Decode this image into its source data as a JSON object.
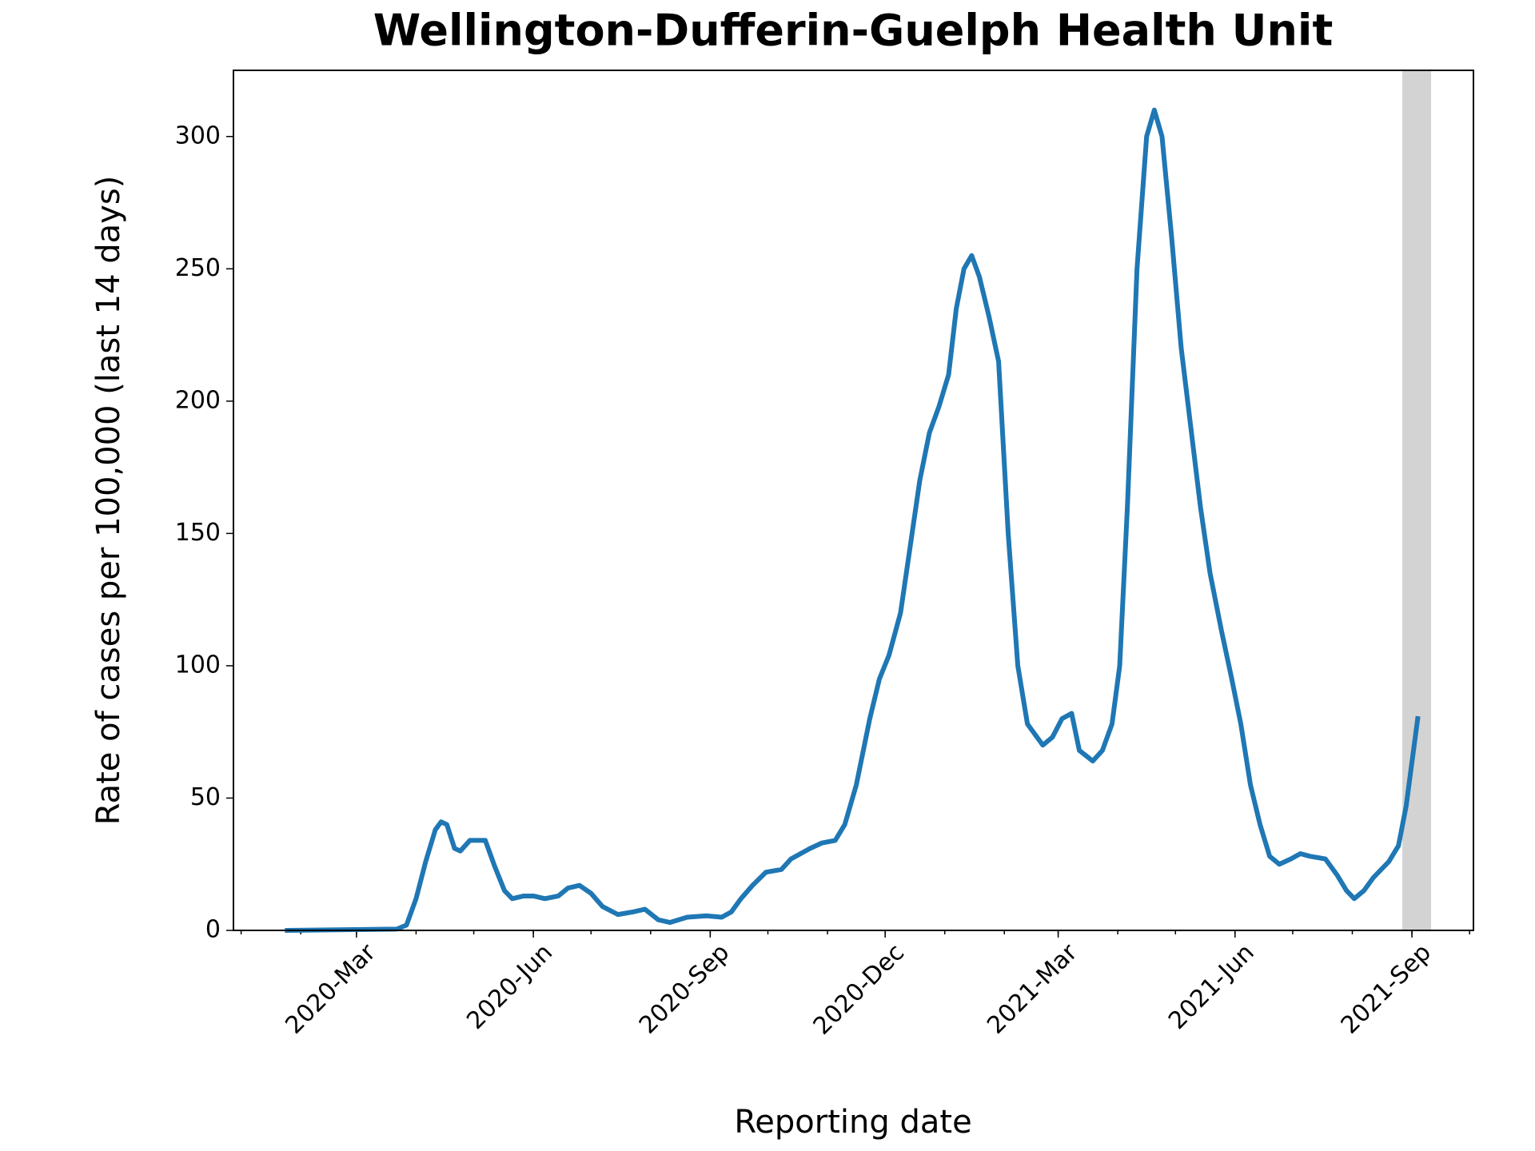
{
  "chart_data": {
    "type": "line",
    "title": "Wellington-Dufferin-Guelph Health Unit",
    "x_label": "Reporting date",
    "y_label": "Rate of cases per 100,000 (last 14 days)",
    "x": [
      "2020-01-25",
      "2020-03-22",
      "2020-03-27",
      "2020-04-01",
      "2020-04-06",
      "2020-04-11",
      "2020-04-14",
      "2020-04-17",
      "2020-04-21",
      "2020-04-24",
      "2020-04-29",
      "2020-05-03",
      "2020-05-07",
      "2020-05-12",
      "2020-05-17",
      "2020-05-21",
      "2020-05-27",
      "2020-06-01",
      "2020-06-07",
      "2020-06-14",
      "2020-06-19",
      "2020-06-25",
      "2020-07-01",
      "2020-07-07",
      "2020-07-15",
      "2020-07-23",
      "2020-07-29",
      "2020-08-05",
      "2020-08-11",
      "2020-08-20",
      "2020-08-30",
      "2020-09-07",
      "2020-09-12",
      "2020-09-17",
      "2020-09-23",
      "2020-09-30",
      "2020-10-08",
      "2020-10-13",
      "2020-10-23",
      "2020-10-29",
      "2020-11-05",
      "2020-11-10",
      "2020-11-16",
      "2020-11-23",
      "2020-11-28",
      "2020-12-03",
      "2020-12-09",
      "2020-12-14",
      "2020-12-19",
      "2020-12-24",
      "2020-12-29",
      "2021-01-03",
      "2021-01-07",
      "2021-01-11",
      "2021-01-15",
      "2021-01-19",
      "2021-01-24",
      "2021-01-29",
      "2021-02-03",
      "2021-02-08",
      "2021-02-13",
      "2021-02-21",
      "2021-02-26",
      "2021-03-03",
      "2021-03-08",
      "2021-03-12",
      "2021-03-19",
      "2021-03-24",
      "2021-03-29",
      "2021-04-02",
      "2021-04-06",
      "2021-04-11",
      "2021-04-16",
      "2021-04-20",
      "2021-04-24",
      "2021-04-29",
      "2021-05-04",
      "2021-05-09",
      "2021-05-14",
      "2021-05-19",
      "2021-05-25",
      "2021-05-30",
      "2021-06-04",
      "2021-06-09",
      "2021-06-14",
      "2021-06-19",
      "2021-06-24",
      "2021-06-30",
      "2021-07-05",
      "2021-07-10",
      "2021-07-18",
      "2021-07-24",
      "2021-07-29",
      "2021-08-02",
      "2021-08-07",
      "2021-08-12",
      "2021-08-20",
      "2021-08-25",
      "2021-08-29",
      "2021-09-04"
    ],
    "series": [
      {
        "name": "Rate",
        "color": "#1f77b4",
        "values": [
          0,
          0.5,
          2,
          12,
          26,
          38,
          41,
          40,
          31,
          30,
          34,
          34,
          34,
          24,
          15,
          12,
          13,
          13,
          12,
          13,
          16,
          17,
          14,
          9,
          6,
          7,
          8,
          4,
          3,
          5,
          5.5,
          5,
          7,
          12,
          17,
          22,
          23,
          27,
          31,
          33,
          34,
          40,
          55,
          80,
          95,
          104,
          120,
          145,
          170,
          188,
          198,
          210,
          235,
          250,
          255,
          247,
          232,
          215,
          150,
          100,
          78,
          70,
          73,
          80,
          82,
          68,
          64,
          68,
          78,
          100,
          160,
          250,
          300,
          310,
          300,
          262,
          220,
          190,
          160,
          135,
          113,
          96,
          78,
          55,
          40,
          28,
          25,
          27,
          29,
          28,
          27,
          21,
          15,
          12,
          15,
          20,
          26,
          32,
          47,
          80
        ]
      }
    ],
    "xlim": [
      "2019-12-28",
      "2021-10-03"
    ],
    "xticks": [
      {
        "value": "2020-03-01",
        "label": "2020-Mar"
      },
      {
        "value": "2020-06-01",
        "label": "2020-Jun"
      },
      {
        "value": "2020-09-01",
        "label": "2020-Sep"
      },
      {
        "value": "2020-12-01",
        "label": "2020-Dec"
      },
      {
        "value": "2021-03-01",
        "label": "2021-Mar"
      },
      {
        "value": "2021-06-01",
        "label": "2021-Jun"
      },
      {
        "value": "2021-09-01",
        "label": "2021-Sep"
      }
    ],
    "ylim": [
      0,
      325
    ],
    "yticks": [
      0,
      50,
      100,
      150,
      200,
      250,
      300
    ],
    "shaded_range": {
      "x": [
        "2021-08-27",
        "2021-09-11"
      ],
      "color": "#d3d3d3"
    },
    "grid": false
  }
}
